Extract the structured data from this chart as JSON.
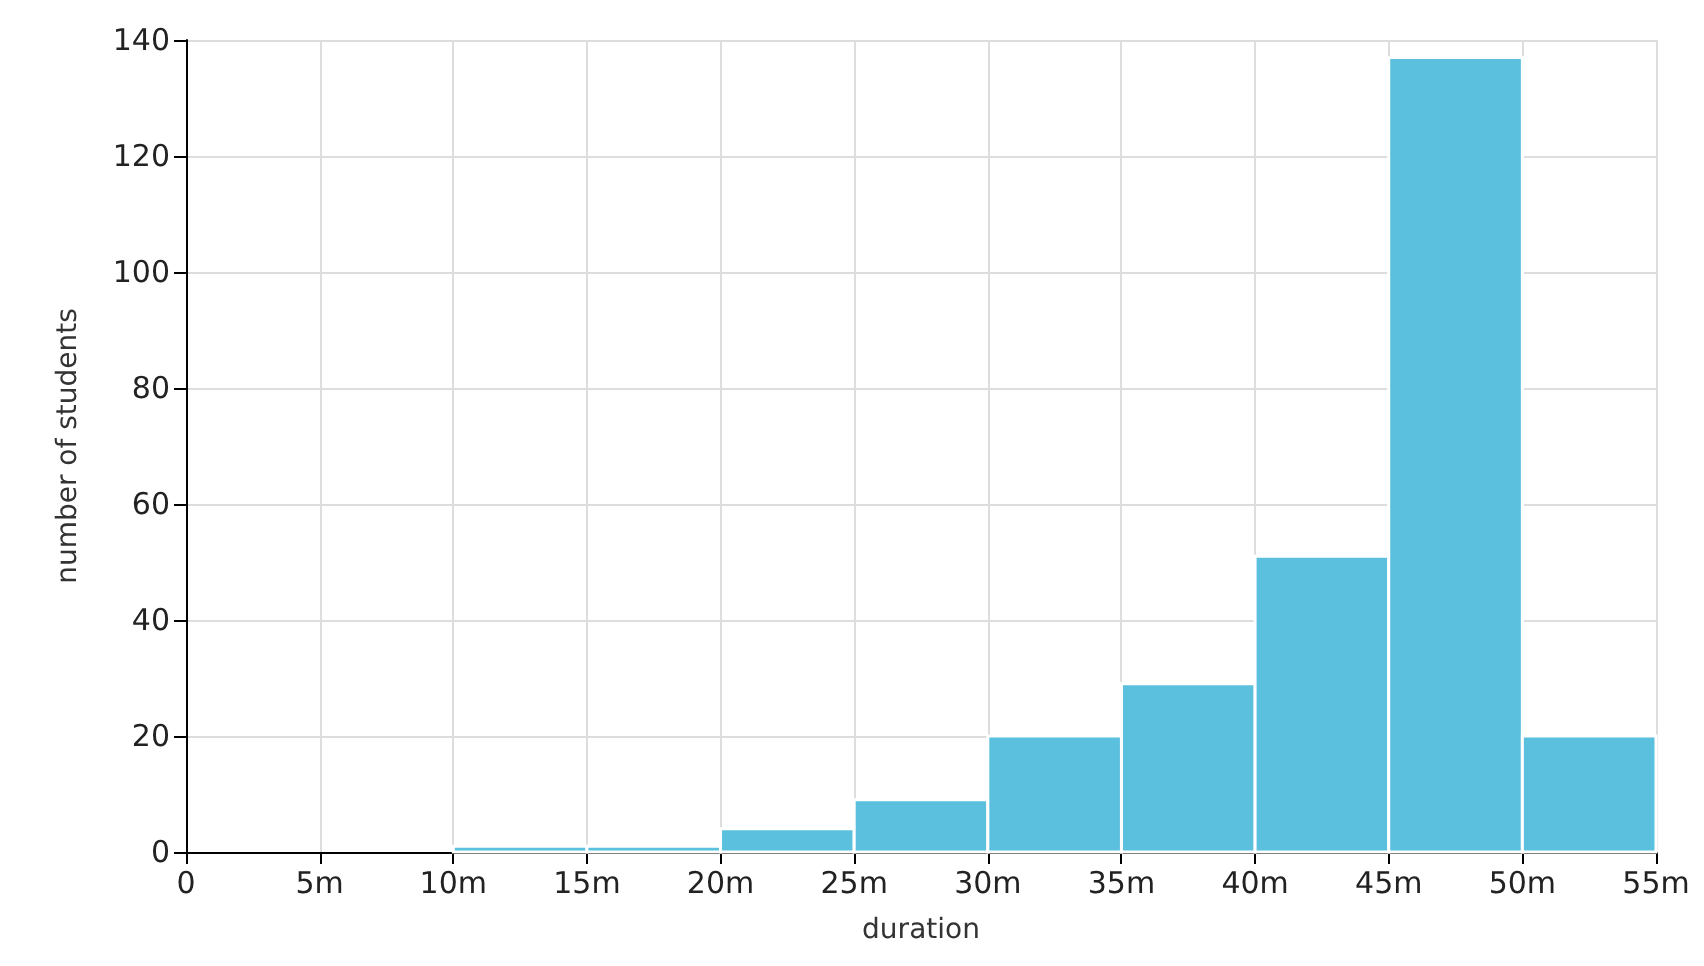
{
  "chart_data": {
    "type": "histogram",
    "xlabel": "duration",
    "ylabel": "number of students",
    "color": "#5bc0de",
    "bins": [
      10,
      15,
      20,
      25,
      30,
      35,
      40,
      45,
      50,
      55
    ],
    "values": [
      1,
      1,
      4,
      9,
      20,
      29,
      51,
      137,
      20
    ],
    "xlim": [
      0,
      55
    ],
    "xticks": [
      0,
      {
        "value": 5,
        "label": "5m"
      },
      {
        "value": 10,
        "label": "10m"
      },
      {
        "value": 15,
        "label": "15m"
      },
      {
        "value": 20,
        "label": "20m"
      },
      {
        "value": 25,
        "label": "25m"
      },
      {
        "value": 30,
        "label": "30m"
      },
      {
        "value": 35,
        "label": "35m"
      },
      {
        "value": 40,
        "label": "40m"
      },
      {
        "value": 45,
        "label": "45m"
      },
      {
        "value": 50,
        "label": "50m"
      },
      {
        "value": 55,
        "label": "55m"
      }
    ],
    "ylim": [
      0,
      140
    ],
    "yticks": [
      0,
      20,
      40,
      60,
      80,
      100,
      120,
      140
    ],
    "grid": true
  }
}
